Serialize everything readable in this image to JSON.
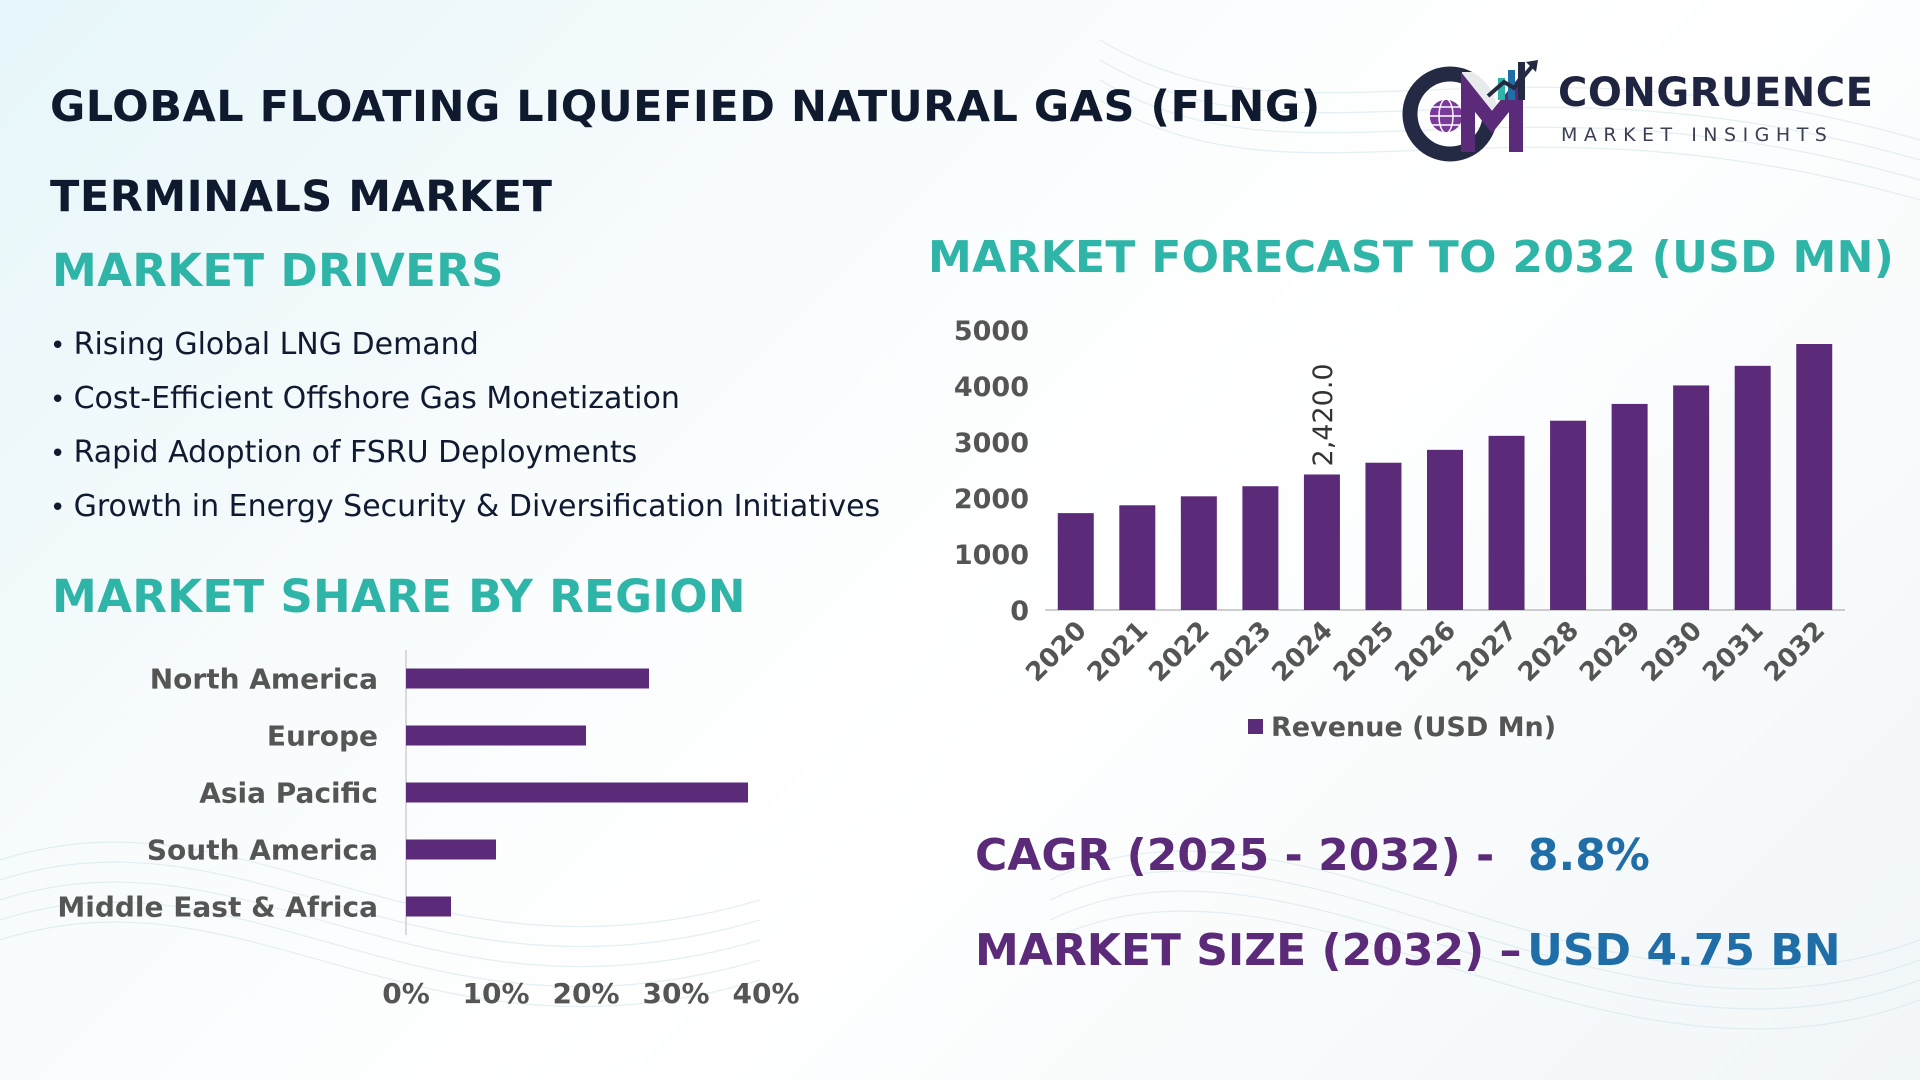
{
  "title": {
    "line1": "GLOBAL FLOATING LIQUEFIED NATURAL GAS (FLNG)",
    "line2": "TERMINALS MARKET"
  },
  "logo": {
    "name": "CONGRUENCE",
    "tagline": "MARKET INSIGHTS",
    "mark": "CM"
  },
  "drivers": {
    "heading": "MARKET DRIVERS",
    "items": [
      "Rising Global LNG Demand",
      "Cost-Efficient Offshore Gas Monetization",
      "Rapid Adoption of FSRU Deployments",
      "Growth in Energy Security & Diversification Initiatives"
    ]
  },
  "forecast": {
    "heading": "MARKET FORECAST TO 2032 (USD MN)"
  },
  "region": {
    "heading": "MARKET SHARE BY REGION"
  },
  "kpis": {
    "cagr_label": "CAGR (2025 - 2032) -",
    "cagr_value": "8.8%",
    "size_label": "MARKET SIZE (2032) –",
    "size_value": "USD 4.75 BN"
  },
  "colors": {
    "bar": "#5b2a79",
    "heading": "#2fb5a8",
    "title": "#0f1a2e",
    "kpi_label": "#5b2a79",
    "kpi_value": "#1f6ea8",
    "axis_text": "#555555"
  },
  "chart_data": [
    {
      "type": "bar",
      "orientation": "vertical",
      "title": "MARKET FORECAST TO 2032 (USD MN)",
      "categories": [
        "2020",
        "2021",
        "2022",
        "2023",
        "2024",
        "2025",
        "2026",
        "2027",
        "2028",
        "2029",
        "2030",
        "2031",
        "2032"
      ],
      "series": [
        {
          "name": "Revenue (USD Mn)",
          "values": [
            1730,
            1870,
            2030,
            2210,
            2420,
            2630,
            2860,
            3110,
            3380,
            3680,
            4010,
            4360,
            4750
          ]
        }
      ],
      "data_labels": [
        {
          "category": "2024",
          "text": "2,420.0"
        }
      ],
      "ylim": [
        0,
        5000
      ],
      "yticks": [
        "0",
        "1000",
        "2000",
        "3000",
        "4000",
        "5000"
      ],
      "legend": "bottom",
      "grid": false
    },
    {
      "type": "bar",
      "orientation": "horizontal",
      "title": "MARKET SHARE BY REGION",
      "categories": [
        "North America",
        "Europe",
        "Asia Pacific",
        "South America",
        "Middle East & Africa"
      ],
      "values": [
        0.27,
        0.2,
        0.38,
        0.1,
        0.05
      ],
      "xlim": [
        0,
        0.4
      ],
      "xticks": [
        "0%",
        "10%",
        "20%",
        "30%",
        "40%"
      ],
      "grid": false
    }
  ]
}
